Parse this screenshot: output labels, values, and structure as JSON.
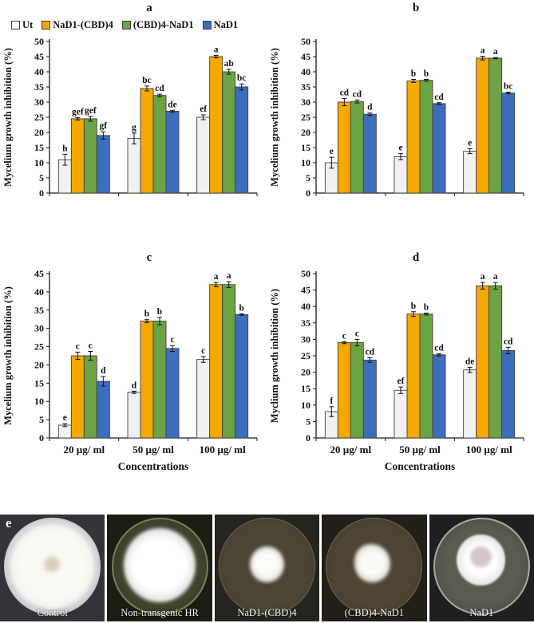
{
  "legend": {
    "items": [
      {
        "label": "Ut",
        "color": "#FFFFFF",
        "border": "#404040"
      },
      {
        "label": "NaD1-(CBD)4",
        "color": "#F5A800",
        "border": "#404040"
      },
      {
        "label": "(CBD)4-NaD1",
        "color": "#6CA344",
        "border": "#404040"
      },
      {
        "label": "NaD1",
        "color": "#3C6EC0",
        "border": "#404040"
      }
    ]
  },
  "chart_data": [
    {
      "id": "a",
      "type": "bar",
      "title": "a",
      "ylabel": "Mycelium growth inhibition (%)",
      "xlabel": "",
      "ylim": [
        0,
        50
      ],
      "ytick_step": 5,
      "show_x_labels": false,
      "categories": [
        "20 µg/ ml",
        "50 µg/ ml",
        "100 µg/ ml"
      ],
      "series": [
        {
          "name": "Ut",
          "color": "#F1F1F1",
          "values": [
            11,
            18,
            25
          ],
          "errors": [
            1.8,
            1.8,
            0.8
          ],
          "letters": [
            "h",
            "g",
            "ef"
          ]
        },
        {
          "name": "NaD1-(CBD)4",
          "color": "#F5A800",
          "values": [
            24.5,
            34.5,
            45
          ],
          "errors": [
            0.4,
            0.8,
            0.4
          ],
          "letters": [
            "gef",
            "bc",
            "a"
          ]
        },
        {
          "name": "(CBD)4-NaD1",
          "color": "#6CA344",
          "values": [
            24.5,
            32.2,
            40
          ],
          "errors": [
            0.8,
            0.4,
            0.8
          ],
          "letters": [
            "gef",
            "cd",
            "ab"
          ]
        },
        {
          "name": "NaD1",
          "color": "#3C6EC0",
          "values": [
            19,
            27,
            35
          ],
          "errors": [
            1.2,
            0.3,
            1.0
          ],
          "letters": [
            "gf",
            "de",
            "bc"
          ]
        }
      ]
    },
    {
      "id": "b",
      "type": "bar",
      "title": "b",
      "ylabel": "Mycelium growth inhibition (%)",
      "xlabel": "",
      "ylim": [
        0,
        50
      ],
      "ytick_step": 5,
      "show_x_labels": false,
      "categories": [
        "20 µg/ ml",
        "50 µg/ ml",
        "100 µg/ ml"
      ],
      "series": [
        {
          "name": "Ut",
          "color": "#F1F1F1",
          "values": [
            10,
            12,
            13.8
          ],
          "errors": [
            1.8,
            1.0,
            0.8
          ],
          "letters": [
            "e",
            "e",
            "e"
          ]
        },
        {
          "name": "NaD1-(CBD)4",
          "color": "#F5A800",
          "values": [
            30,
            37,
            44.5
          ],
          "errors": [
            1.2,
            0.5,
            0.6
          ],
          "letters": [
            "cd",
            "b",
            "a"
          ]
        },
        {
          "name": "(CBD)4-NaD1",
          "color": "#6CA344",
          "values": [
            30.2,
            37.2,
            44.5
          ],
          "errors": [
            0.5,
            0.3,
            0.2
          ],
          "letters": [
            "cd",
            "b",
            "a"
          ]
        },
        {
          "name": "NaD1",
          "color": "#3C6EC0",
          "values": [
            26,
            29.5,
            33
          ],
          "errors": [
            0.4,
            0.3,
            0.3
          ],
          "letters": [
            "d",
            "cd",
            "bc"
          ]
        }
      ]
    },
    {
      "id": "c",
      "type": "bar",
      "title": "c",
      "ylabel": "Mycelium growth inhibition (%)",
      "xlabel": "Concentrations",
      "ylim": [
        0,
        45
      ],
      "ytick_step": 5,
      "show_x_labels": true,
      "categories": [
        "20 µg/ ml",
        "50 µg/ ml",
        "100 µg/ ml"
      ],
      "series": [
        {
          "name": "Ut",
          "color": "#F1F1F1",
          "values": [
            3.5,
            12.5,
            21.5
          ],
          "errors": [
            0.4,
            0.3,
            0.8
          ],
          "letters": [
            "e",
            "d",
            "c"
          ]
        },
        {
          "name": "NaD1-(CBD)4",
          "color": "#F5A800",
          "values": [
            22.5,
            32,
            42
          ],
          "errors": [
            1.0,
            0.4,
            0.6
          ],
          "letters": [
            "c",
            "b",
            "a"
          ]
        },
        {
          "name": "(CBD)4-NaD1",
          "color": "#6CA344",
          "values": [
            22.5,
            32,
            42
          ],
          "errors": [
            1.2,
            1.0,
            0.8
          ],
          "letters": [
            "c",
            "b",
            "a"
          ]
        },
        {
          "name": "NaD1",
          "color": "#3C6EC0",
          "values": [
            15.5,
            24.5,
            33.8
          ],
          "errors": [
            1.3,
            0.8,
            0.2
          ],
          "letters": [
            "d",
            "c",
            "b"
          ]
        }
      ]
    },
    {
      "id": "d",
      "type": "bar",
      "title": "d",
      "ylabel": "Myclium growth inhibition (%)",
      "xlabel": "Concentrations",
      "ylim": [
        0,
        50
      ],
      "ytick_step": 5,
      "show_x_labels": true,
      "categories": [
        "20 µg/ ml",
        "50 µg/ ml",
        "100 µg/ ml"
      ],
      "series": [
        {
          "name": "Ut",
          "color": "#F1F1F1",
          "values": [
            8,
            14.5,
            20.7
          ],
          "errors": [
            1.5,
            1.0,
            0.8
          ],
          "letters": [
            "f",
            "ef",
            "de"
          ]
        },
        {
          "name": "NaD1-(CBD)4",
          "color": "#F5A800",
          "values": [
            29,
            37.7,
            46.3
          ],
          "errors": [
            0.3,
            0.7,
            1.0
          ],
          "letters": [
            "c",
            "b",
            "a"
          ]
        },
        {
          "name": "(CBD)4-NaD1",
          "color": "#6CA344",
          "values": [
            29,
            37.7,
            46.3
          ],
          "errors": [
            1.0,
            0.3,
            1.0
          ],
          "letters": [
            "c",
            "b",
            "a"
          ]
        },
        {
          "name": "NaD1",
          "color": "#3C6EC0",
          "values": [
            23.7,
            25.3,
            26.6
          ],
          "errors": [
            0.7,
            0.3,
            1.0
          ],
          "letters": [
            "cd",
            "cd",
            "cd"
          ]
        }
      ]
    }
  ],
  "photos": {
    "panel_label": "e",
    "items": [
      {
        "label": "Control"
      },
      {
        "label": "Non-transgenic HR"
      },
      {
        "label": "NaD1-(CBD)4"
      },
      {
        "label": "(CBD)4-NaD1"
      },
      {
        "label": "NaD1"
      }
    ]
  }
}
